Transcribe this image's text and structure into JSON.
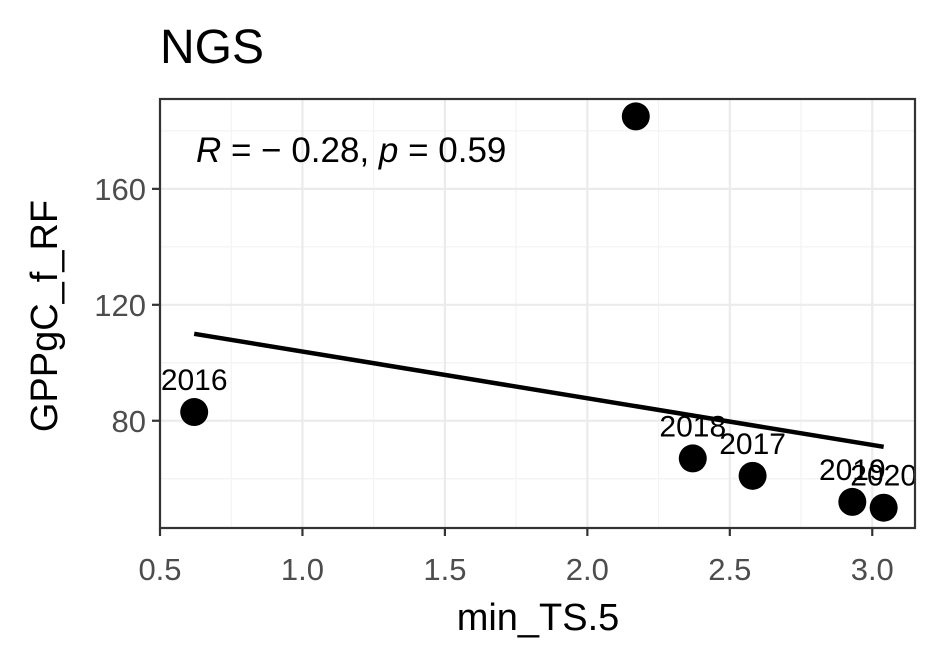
{
  "chart_data": {
    "type": "scatter",
    "title": "NGS",
    "xlabel": "min_TS.5",
    "ylabel": "GPPgC_f_RF",
    "xlim": [
      0.5,
      3.15
    ],
    "ylim": [
      43,
      191
    ],
    "x_ticks": [
      0.5,
      1.0,
      1.5,
      2.0,
      2.5,
      3.0
    ],
    "x_tick_labels": [
      "0.5",
      "1.0",
      "1.5",
      "2.0",
      "2.5",
      "3.0"
    ],
    "y_ticks": [
      80,
      120,
      160
    ],
    "y_tick_labels": [
      "80",
      "120",
      "160"
    ],
    "grid": true,
    "points": [
      {
        "x": 0.62,
        "y": 83,
        "label": "2016"
      },
      {
        "x": 2.17,
        "y": 185,
        "label": ""
      },
      {
        "x": 2.37,
        "y": 67,
        "label": "2018"
      },
      {
        "x": 2.58,
        "y": 61,
        "label": "2017"
      },
      {
        "x": 2.93,
        "y": 52,
        "label": "2019"
      },
      {
        "x": 3.04,
        "y": 50,
        "label": "2020"
      }
    ],
    "regression_line": {
      "x": [
        0.62,
        3.04
      ],
      "y": [
        110,
        71
      ]
    },
    "annotation": {
      "r_symbol": "R",
      "r_text": " = − 0.28, ",
      "p_symbol": "p",
      "p_text": " = 0.59"
    },
    "colors": {
      "points": "#000000",
      "line": "#000000",
      "panel_border": "#333333",
      "grid": "#ebebeb"
    }
  }
}
